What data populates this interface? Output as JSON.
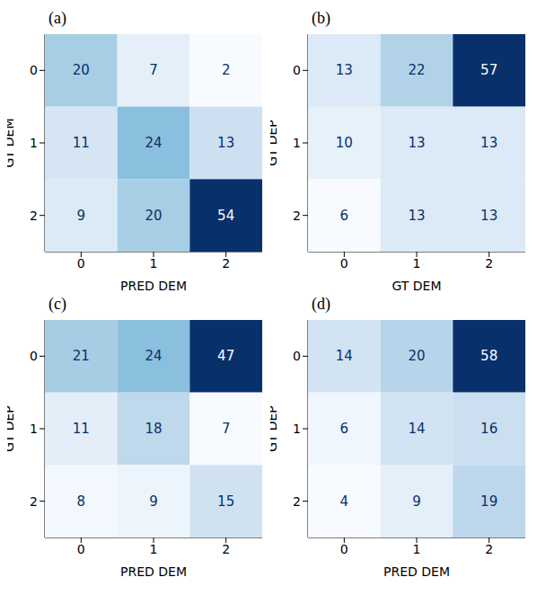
{
  "chart_data": [
    {
      "type": "heatmap",
      "title": "(a)",
      "x_label": "PRED DEM",
      "y_label": "GT DEM",
      "xlim": [
        -0.5,
        2.5
      ],
      "xticks": [
        0,
        1,
        2
      ],
      "ylim": [
        2.5,
        -0.5
      ],
      "yticks": [
        0,
        1,
        2
      ],
      "color": "Blues",
      "data_labels": true,
      "cells": [
        [
          20,
          7,
          2
        ],
        [
          11,
          24,
          13
        ],
        [
          9,
          20,
          54
        ]
      ]
    },
    {
      "type": "heatmap",
      "title": "(b)",
      "x_label": "GT DEM",
      "y_label": "GT DEP",
      "xlim": [
        -0.5,
        2.5
      ],
      "xticks": [
        0,
        1,
        2
      ],
      "ylim": [
        2.5,
        -0.5
      ],
      "yticks": [
        0,
        1,
        2
      ],
      "color": "Blues",
      "data_labels": true,
      "cells": [
        [
          13,
          22,
          57
        ],
        [
          10,
          13,
          13
        ],
        [
          6,
          13,
          13
        ]
      ]
    },
    {
      "type": "heatmap",
      "title": "(c)",
      "x_label": "PRED DEM",
      "y_label": "GT DEP",
      "xlim": [
        -0.5,
        2.5
      ],
      "xticks": [
        0,
        1,
        2
      ],
      "ylim": [
        2.5,
        -0.5
      ],
      "yticks": [
        0,
        1,
        2
      ],
      "color": "Blues",
      "data_labels": true,
      "cells": [
        [
          21,
          24,
          47
        ],
        [
          11,
          18,
          7
        ],
        [
          8,
          9,
          15
        ]
      ]
    },
    {
      "type": "heatmap",
      "title": "(d)",
      "x_label": "PRED DEM",
      "y_label": "GT DEP",
      "xlim": [
        -0.5,
        2.5
      ],
      "xticks": [
        0,
        1,
        2
      ],
      "ylim": [
        2.5,
        -0.5
      ],
      "yticks": [
        0,
        1,
        2
      ],
      "color": "Blues",
      "data_labels": true,
      "cells": [
        [
          14,
          20,
          58
        ],
        [
          6,
          14,
          16
        ],
        [
          4,
          9,
          19
        ]
      ]
    }
  ]
}
